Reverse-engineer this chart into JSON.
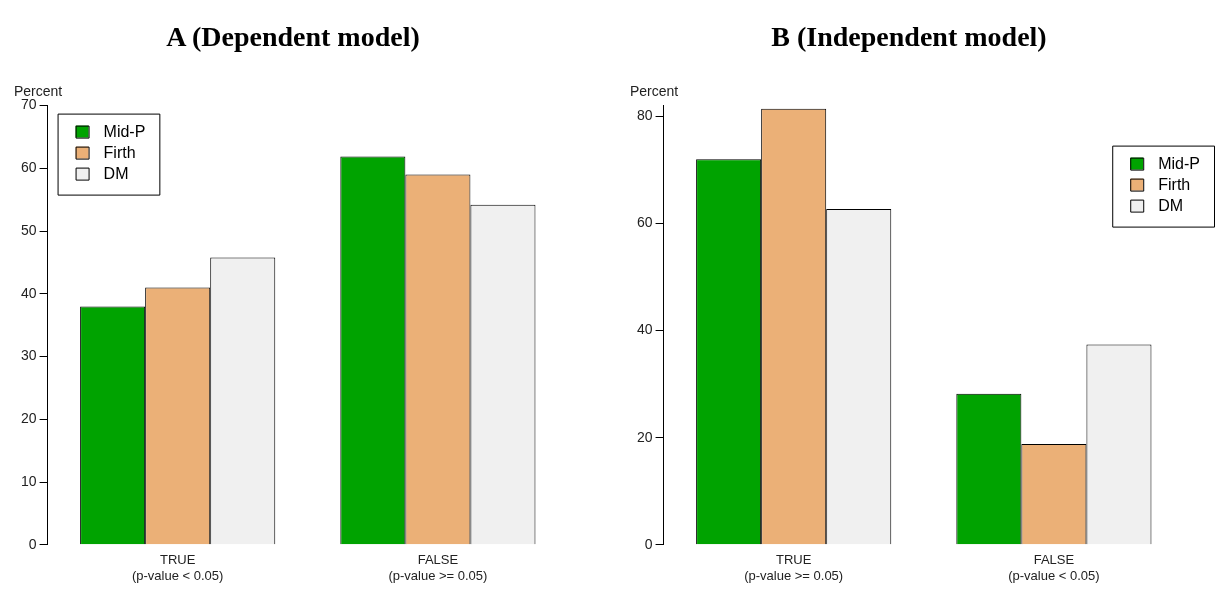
{
  "chart_data": [
    {
      "type": "bar",
      "title": "A (Dependent model)",
      "ylabel": "Percent",
      "categories": [
        "TRUE\n(p-value < 0.05)",
        "FALSE\n(p-value >= 0.05)"
      ],
      "series": [
        {
          "name": "Mid-P",
          "color": "#00a300",
          "values": [
            38,
            61.9
          ]
        },
        {
          "name": "Firth",
          "color": "#ebb077",
          "values": [
            41,
            59
          ]
        },
        {
          "name": "DM",
          "color": "#f0f0f0",
          "values": [
            45.8,
            54.2
          ]
        }
      ],
      "ylim": [
        0,
        70
      ],
      "yticks": [
        0,
        10,
        20,
        30,
        40,
        50,
        60,
        70
      ],
      "grid": false,
      "legend": "top left"
    },
    {
      "type": "bar",
      "title": "B (Independent model)",
      "ylabel": "Percent",
      "categories": [
        "TRUE\n(p-value >= 0.05)",
        "FALSE\n(p-value < 0.05)"
      ],
      "series": [
        {
          "name": "Mid-P",
          "color": "#00a300",
          "values": [
            72,
            28.2
          ]
        },
        {
          "name": "Firth",
          "color": "#ebb077",
          "values": [
            81.4,
            18.8
          ]
        },
        {
          "name": "DM",
          "color": "#f0f0f0",
          "values": [
            62.7,
            37.4
          ]
        }
      ],
      "ylim": [
        0,
        82
      ],
      "yticks": [
        0,
        20,
        40,
        60,
        80
      ],
      "grid": false,
      "legend": "top right"
    }
  ]
}
